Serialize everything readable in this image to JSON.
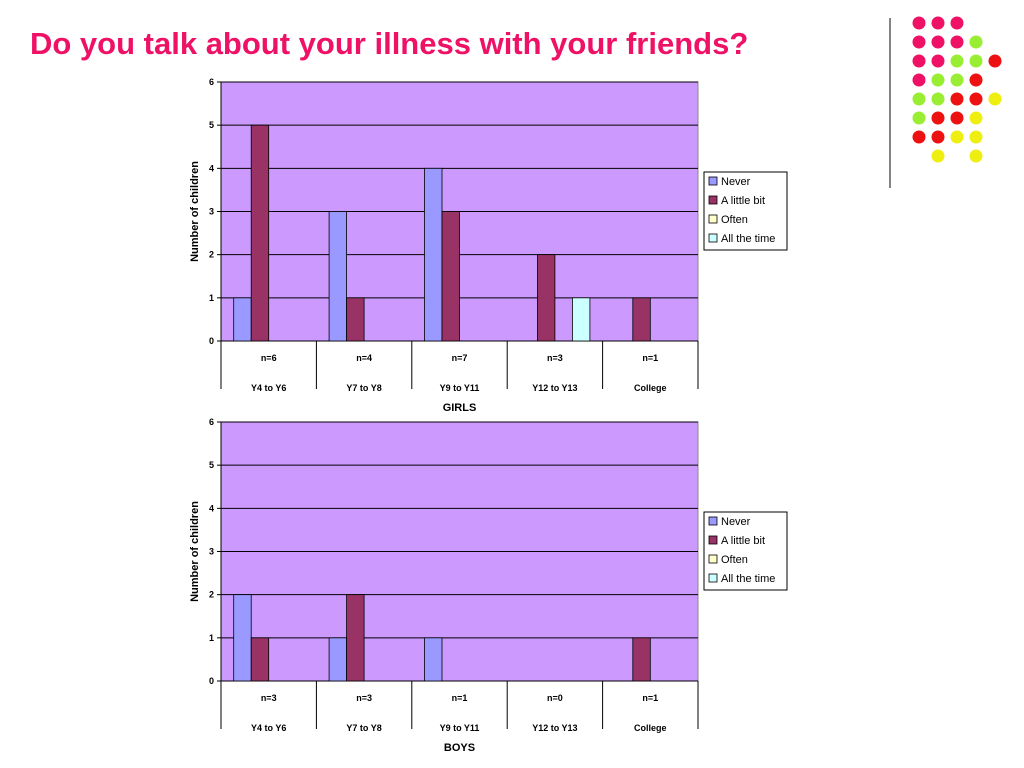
{
  "slide": {
    "title": "Do you talk about your illness with your friends?",
    "title_color": "#ee1166",
    "decoration_colors": [
      "#ee1166",
      "#99ee33",
      "#ee1111",
      "#eeee11"
    ]
  },
  "chart_data": [
    {
      "type": "bar",
      "title": "",
      "xlabel": "GIRLS",
      "ylabel": "Number of children",
      "ylim": [
        0,
        6
      ],
      "yticks": [
        0,
        1,
        2,
        3,
        4,
        5,
        6
      ],
      "grid": true,
      "legend": "right",
      "plot_bg": "#cc99ff",
      "categories": [
        "Y4 to Y6",
        "Y7 to Y8",
        "Y9 to Y11",
        "Y12 to Y13",
        "College"
      ],
      "sample_sizes": [
        "n=6",
        "n=4",
        "n=7",
        "n=3",
        "n=1"
      ],
      "series": [
        {
          "name": "Never",
          "color": "#9999ff",
          "values": [
            1,
            3,
            4,
            0,
            0
          ]
        },
        {
          "name": "A little bit",
          "color": "#993366",
          "values": [
            5,
            1,
            3,
            2,
            1
          ]
        },
        {
          "name": "Often",
          "color": "#ffffcc",
          "values": [
            0,
            0,
            0,
            0,
            0
          ]
        },
        {
          "name": "All the time",
          "color": "#ccffff",
          "values": [
            0,
            0,
            0,
            1,
            0
          ]
        }
      ]
    },
    {
      "type": "bar",
      "title": "",
      "xlabel": "BOYS",
      "ylabel": "Number of children",
      "ylim": [
        0,
        6
      ],
      "yticks": [
        0,
        1,
        2,
        3,
        4,
        5,
        6
      ],
      "grid": true,
      "legend": "right",
      "plot_bg": "#cc99ff",
      "categories": [
        "Y4 to Y6",
        "Y7 to Y8",
        "Y9 to Y11",
        "Y12 to Y13",
        "College"
      ],
      "sample_sizes": [
        "n=3",
        "n=3",
        "n=1",
        "n=0",
        "n=1"
      ],
      "series": [
        {
          "name": "Never",
          "color": "#9999ff",
          "values": [
            2,
            1,
            1,
            0,
            0
          ]
        },
        {
          "name": "A little bit",
          "color": "#993366",
          "values": [
            1,
            2,
            0,
            0,
            1
          ]
        },
        {
          "name": "Often",
          "color": "#ffffcc",
          "values": [
            0,
            0,
            0,
            0,
            0
          ]
        },
        {
          "name": "All the time",
          "color": "#ccffff",
          "values": [
            0,
            0,
            0,
            0,
            0
          ]
        }
      ]
    }
  ]
}
